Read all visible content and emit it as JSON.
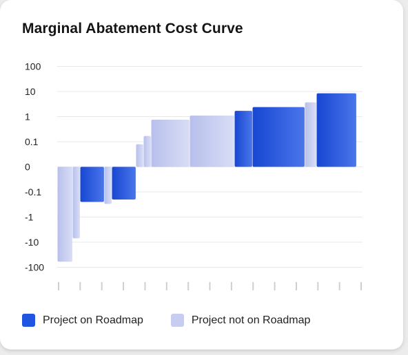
{
  "title": "Marginal Abatement Cost Curve",
  "colors": {
    "roadmap": "#1f55e0",
    "not_roadmap": "#c6cdf0"
  },
  "chart_data": {
    "type": "bar",
    "title": "Marginal Abatement Cost Curve",
    "y_scale": "symlog",
    "y_ticks": [
      "100",
      "10",
      "1",
      "0.1",
      "0",
      "-0.1",
      "-1",
      "-10",
      "-100"
    ],
    "y_tick_values": [
      100,
      10,
      1,
      0.1,
      0,
      -0.1,
      -1,
      -10,
      -100
    ],
    "ylim": [
      -100,
      100
    ],
    "grid": true,
    "legend_position": "bottom",
    "x_tick_count": 15,
    "series": [
      {
        "name": "Project on Roadmap"
      },
      {
        "name": "Project not on Roadmap"
      }
    ],
    "bars": [
      {
        "value": -60,
        "width": 22,
        "series": "Project not on Roadmap"
      },
      {
        "value": -7,
        "width": 11,
        "series": "Project not on Roadmap"
      },
      {
        "value": -0.25,
        "width": 35,
        "series": "Project on Roadmap"
      },
      {
        "value": -0.3,
        "width": 11,
        "series": "Project not on Roadmap"
      },
      {
        "value": -0.2,
        "width": 35,
        "series": "Project on Roadmap"
      },
      {
        "value": 0.09,
        "width": 11,
        "series": "Project not on Roadmap"
      },
      {
        "value": 0.17,
        "width": 11,
        "series": "Project not on Roadmap"
      },
      {
        "value": 0.75,
        "width": 56,
        "series": "Project not on Roadmap"
      },
      {
        "value": 1.1,
        "width": 65,
        "series": "Project not on Roadmap"
      },
      {
        "value": 1.7,
        "width": 26,
        "series": "Project on Roadmap"
      },
      {
        "value": 2.4,
        "width": 76,
        "series": "Project on Roadmap"
      },
      {
        "value": 3.7,
        "width": 17,
        "series": "Project not on Roadmap"
      },
      {
        "value": 8.5,
        "width": 58,
        "series": "Project on Roadmap"
      }
    ]
  },
  "legend": [
    {
      "label": "Project on Roadmap",
      "color": "#1f55e0"
    },
    {
      "label": "Project not on Roadmap",
      "color": "#c6cdf0"
    }
  ]
}
